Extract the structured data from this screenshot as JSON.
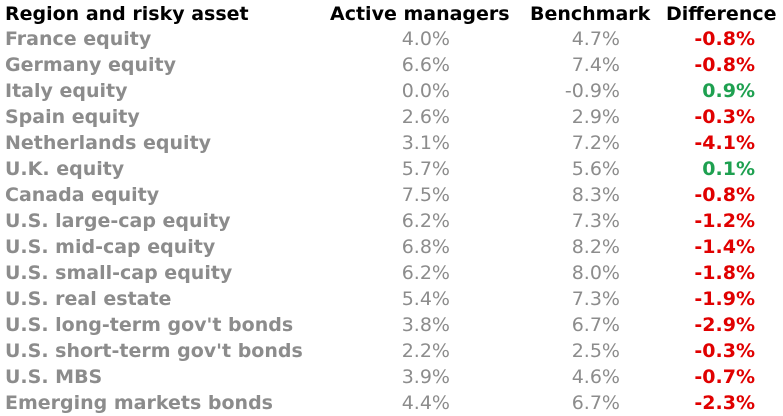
{
  "header": {
    "asset": "Region and risky asset",
    "active": "Active managers",
    "benchmark": "Benchmark",
    "difference": "Difference"
  },
  "colors": {
    "negative": "#e00000",
    "positive": "#1ea050",
    "label_gray": "#8c8c8c"
  },
  "rows": [
    {
      "asset": "France equity",
      "active": "4.0%",
      "benchmark": "4.7%",
      "difference": "-0.8%",
      "sign": "neg"
    },
    {
      "asset": "Germany equity",
      "active": "6.6%",
      "benchmark": "7.4%",
      "difference": "-0.8%",
      "sign": "neg"
    },
    {
      "asset": "Italy equity",
      "active": "0.0%",
      "benchmark": "-0.9%",
      "difference": "0.9%",
      "sign": "pos"
    },
    {
      "asset": "Spain equity",
      "active": "2.6%",
      "benchmark": "2.9%",
      "difference": "-0.3%",
      "sign": "neg"
    },
    {
      "asset": "Netherlands equity",
      "active": "3.1%",
      "benchmark": "7.2%",
      "difference": "-4.1%",
      "sign": "neg"
    },
    {
      "asset": "U.K. equity",
      "active": "5.7%",
      "benchmark": "5.6%",
      "difference": "0.1%",
      "sign": "pos"
    },
    {
      "asset": "Canada equity",
      "active": "7.5%",
      "benchmark": "8.3%",
      "difference": "-0.8%",
      "sign": "neg"
    },
    {
      "asset": "U.S. large-cap equity",
      "active": "6.2%",
      "benchmark": "7.3%",
      "difference": "-1.2%",
      "sign": "neg"
    },
    {
      "asset": "U.S. mid-cap equity",
      "active": "6.8%",
      "benchmark": "8.2%",
      "difference": "-1.4%",
      "sign": "neg"
    },
    {
      "asset": "U.S. small-cap equity",
      "active": "6.2%",
      "benchmark": "8.0%",
      "difference": "-1.8%",
      "sign": "neg"
    },
    {
      "asset": "U.S. real estate",
      "active": "5.4%",
      "benchmark": "7.3%",
      "difference": "-1.9%",
      "sign": "neg"
    },
    {
      "asset": "U.S. long-term gov't bonds",
      "active": "3.8%",
      "benchmark": "6.7%",
      "difference": "-2.9%",
      "sign": "neg"
    },
    {
      "asset": "U.S. short-term gov't bonds",
      "active": "2.2%",
      "benchmark": "2.5%",
      "difference": "-0.3%",
      "sign": "neg"
    },
    {
      "asset": "U.S. MBS",
      "active": "3.9%",
      "benchmark": "4.6%",
      "difference": "-0.7%",
      "sign": "neg"
    },
    {
      "asset": "Emerging markets bonds",
      "active": "4.4%",
      "benchmark": "6.7%",
      "difference": "-2.3%",
      "sign": "neg"
    }
  ]
}
